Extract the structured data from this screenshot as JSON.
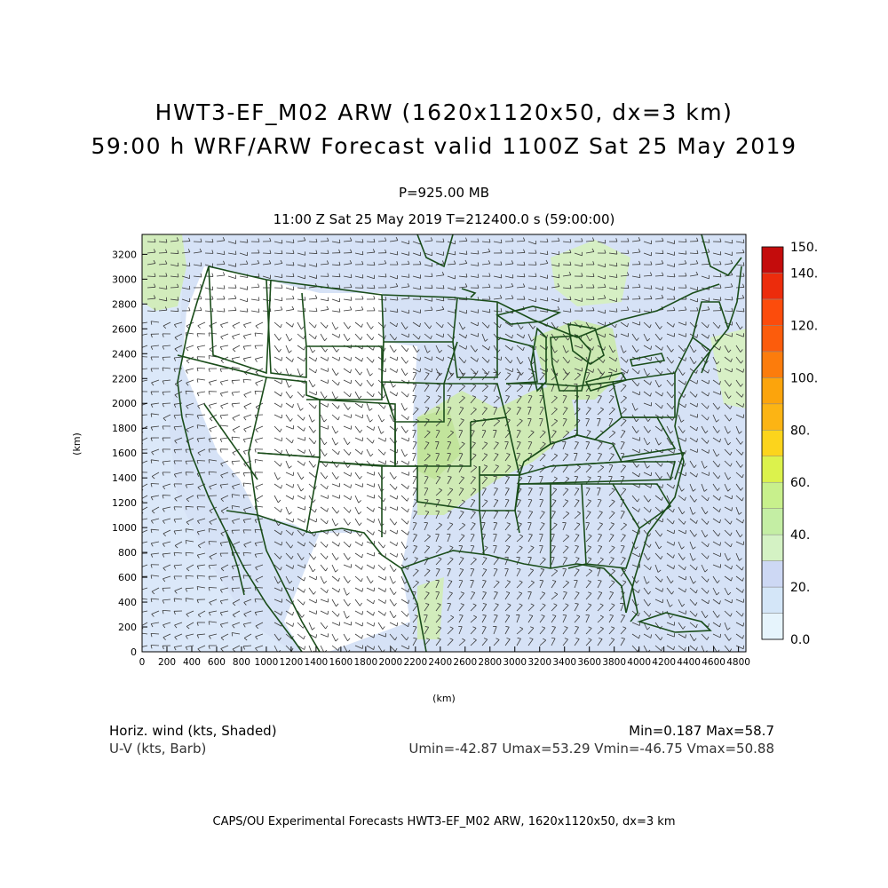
{
  "titles": {
    "line1": "HWT3-EF_M02 ARW (1620x1120x50, dx=3 km)",
    "line2": "59:00 h WRF/ARW Forecast valid 1100Z Sat 25 May 2019"
  },
  "subtitles": {
    "level": "P=925.00 MB",
    "time": "11:00 Z Sat 25 May 2019    T=212400.0 s (59:00:00)"
  },
  "axes": {
    "ylabel": "(km)",
    "xlabel": "(km)",
    "yticks": [
      "0",
      "200",
      "400",
      "600",
      "800",
      "1000",
      "1200",
      "1400",
      "1600",
      "1800",
      "2000",
      "2200",
      "2400",
      "2600",
      "2800",
      "3000",
      "3200"
    ],
    "xticks": [
      "0",
      "200",
      "400",
      "600",
      "800",
      "1000",
      "1200",
      "1400",
      "1600",
      "1800",
      "2000",
      "2200",
      "2400",
      "2600",
      "2800",
      "3000",
      "3200",
      "3400",
      "3600",
      "3800",
      "4000",
      "4200",
      "4400",
      "4600",
      "4800"
    ]
  },
  "colorbar": {
    "labels": [
      "0.0",
      "20.",
      "40.",
      "60.",
      "80.",
      "100.",
      "120.",
      "140.",
      "150."
    ],
    "colors": [
      "#e6f4fc",
      "#d4e6f8",
      "#cdd8f4",
      "#d4f2c4",
      "#c4eea4",
      "#dcf24c",
      "#fcd41c",
      "#fca40c",
      "#fc7c0c",
      "#fc4c0c",
      "#ec2c0c",
      "#d4140c",
      "#b4040c"
    ]
  },
  "footer": {
    "field1": "Horiz. wind (kts, Shaded)",
    "field2": "U-V (kts, Barb)",
    "minmax": "Min=0.187 Max=58.7",
    "uvstats": "Umin=-42.87 Umax=53.29 Vmin=-46.75 Vmax=50.88",
    "credit": "CAPS/OU Experimental Forecasts  HWT3-EF_M02 ARW, 1620x1120x50, dx=3 km"
  },
  "map_colors": {
    "border": "#1a4d1a",
    "land_high": "#ffffff",
    "bg_fill": "#d8e4f8"
  }
}
